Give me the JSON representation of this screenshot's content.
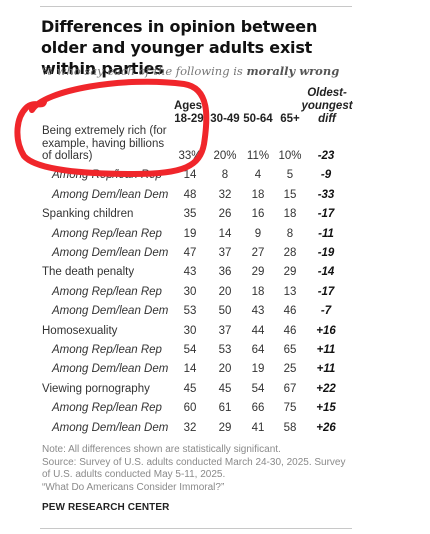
{
  "title": "Differences in opinion between older and younger adults exist within parties",
  "subtitle_prefix": "% who say each of the following is ",
  "subtitle_emphasis": "morally wrong",
  "chart_data": {
    "type": "table",
    "columns": {
      "ages_label": "Ages",
      "groups": [
        "18-29",
        "30-49",
        "50-64",
        "65+"
      ],
      "diff_label": [
        "Oldest-",
        "youngest",
        "diff"
      ]
    },
    "rows": [
      {
        "label": "Being extremely rich (for example, having billions of dollars)",
        "label_lines": [
          "Being extremely rich (for",
          "example, having billions",
          "of dollars)"
        ],
        "level": "item",
        "values": [
          "33%",
          "20%",
          "11%",
          "10%"
        ],
        "diff": "-23"
      },
      {
        "label": "Among Rep/lean Rep",
        "level": "sub",
        "values": [
          "14",
          "8",
          "4",
          "5"
        ],
        "diff": "-9"
      },
      {
        "label": "Among Dem/lean Dem",
        "level": "sub",
        "values": [
          "48",
          "32",
          "18",
          "15"
        ],
        "diff": "-33"
      },
      {
        "label": "Spanking children",
        "level": "item",
        "values": [
          "35",
          "26",
          "16",
          "18"
        ],
        "diff": "-17"
      },
      {
        "label": "Among Rep/lean Rep",
        "level": "sub",
        "values": [
          "19",
          "14",
          "9",
          "8"
        ],
        "diff": "-11"
      },
      {
        "label": "Among Dem/lean Dem",
        "level": "sub",
        "values": [
          "47",
          "37",
          "27",
          "28"
        ],
        "diff": "-19"
      },
      {
        "label": "The death penalty",
        "level": "item",
        "values": [
          "43",
          "36",
          "29",
          "29"
        ],
        "diff": "-14"
      },
      {
        "label": "Among Rep/lean Rep",
        "level": "sub",
        "values": [
          "30",
          "20",
          "18",
          "13"
        ],
        "diff": "-17"
      },
      {
        "label": "Among Dem/lean Dem",
        "level": "sub",
        "values": [
          "53",
          "50",
          "43",
          "46"
        ],
        "diff": "-7"
      },
      {
        "label": "Homosexuality",
        "level": "item",
        "values": [
          "30",
          "37",
          "44",
          "46"
        ],
        "diff": "+16"
      },
      {
        "label": "Among Rep/lean Rep",
        "level": "sub",
        "values": [
          "54",
          "53",
          "64",
          "65"
        ],
        "diff": "+11"
      },
      {
        "label": "Among Dem/lean Dem",
        "level": "sub",
        "values": [
          "14",
          "20",
          "19",
          "25"
        ],
        "diff": "+11"
      },
      {
        "label": "Viewing pornography",
        "level": "item",
        "values": [
          "45",
          "45",
          "54",
          "67"
        ],
        "diff": "+22"
      },
      {
        "label": "Among Rep/lean Rep",
        "level": "sub",
        "values": [
          "60",
          "61",
          "66",
          "75"
        ],
        "diff": "+15"
      },
      {
        "label": "Among Dem/lean Dem",
        "level": "sub",
        "values": [
          "32",
          "29",
          "41",
          "58"
        ],
        "diff": "+26"
      }
    ]
  },
  "notes": [
    "Note: All differences shown are statistically significant.",
    "Source: Survey of U.S. adults conducted March 24-30, 2025. Survey",
    "of U.S. adults conducted May 5-11, 2025.",
    "“What Do Americans Consider Immoral?”"
  ],
  "source_label": "PEW RESEARCH CENTER",
  "annotation_color": "#f0262b"
}
